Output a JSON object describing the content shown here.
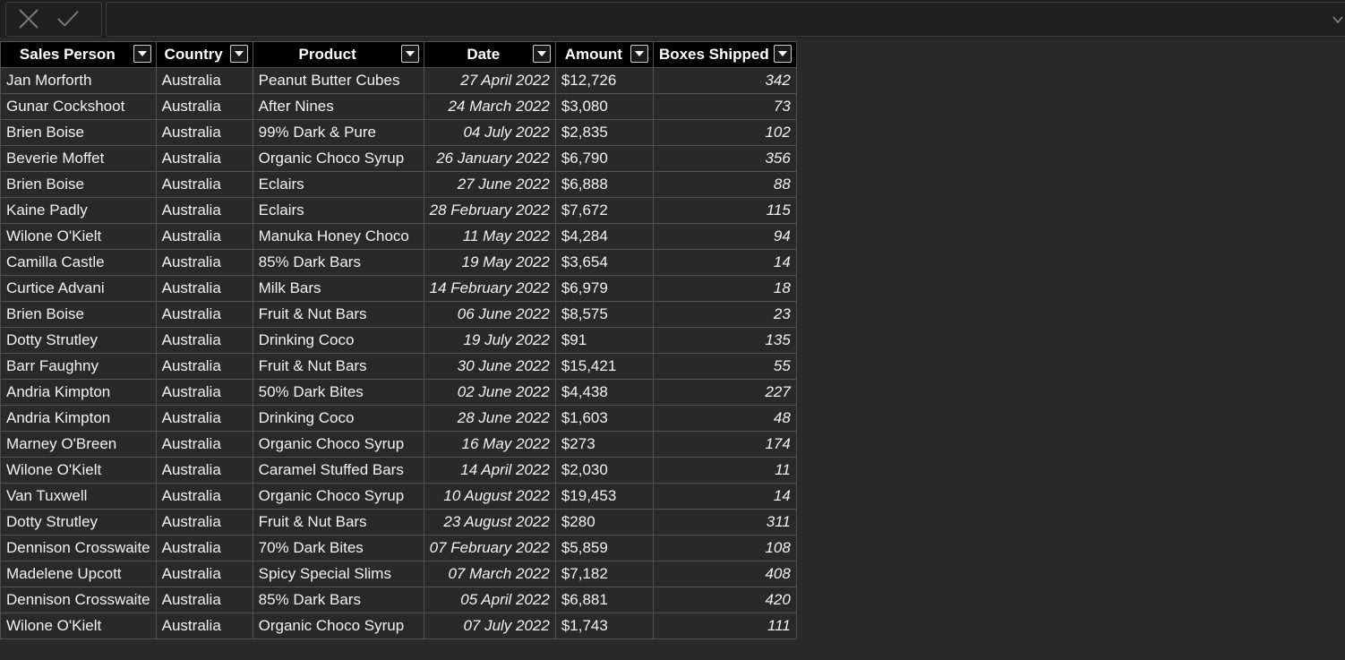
{
  "formula_bar": {
    "cancel_icon": "close-icon",
    "enter_icon": "checkmark-icon",
    "value": "",
    "expand_icon": "chevron-down-icon"
  },
  "table": {
    "columns": [
      {
        "label": "Sales Person",
        "filter_icon": "filter-dropdown-icon"
      },
      {
        "label": "Country",
        "filter_icon": "filter-dropdown-icon"
      },
      {
        "label": "Product",
        "filter_icon": "filter-dropdown-icon"
      },
      {
        "label": "Date",
        "filter_icon": "filter-dropdown-icon"
      },
      {
        "label": "Amount",
        "filter_icon": "filter-dropdown-icon"
      },
      {
        "label": "Boxes Shipped",
        "filter_icon": "filter-dropdown-icon"
      }
    ],
    "rows": [
      [
        "Jan Morforth",
        "Australia",
        "Peanut Butter Cubes",
        "27 April 2022",
        "$12,726",
        "342"
      ],
      [
        "Gunar Cockshoot",
        "Australia",
        "After Nines",
        "24 March 2022",
        "$3,080",
        "73"
      ],
      [
        "Brien Boise",
        "Australia",
        "99% Dark & Pure",
        "04 July 2022",
        "$2,835",
        "102"
      ],
      [
        "Beverie Moffet",
        "Australia",
        "Organic Choco Syrup",
        "26 January 2022",
        "$6,790",
        "356"
      ],
      [
        "Brien Boise",
        "Australia",
        "Eclairs",
        "27 June 2022",
        "$6,888",
        "88"
      ],
      [
        "Kaine Padly",
        "Australia",
        "Eclairs",
        "28 February 2022",
        "$7,672",
        "115"
      ],
      [
        "Wilone O'Kielt",
        "Australia",
        "Manuka Honey Choco",
        "11 May 2022",
        "$4,284",
        "94"
      ],
      [
        "Camilla Castle",
        "Australia",
        "85% Dark Bars",
        "19 May 2022",
        "$3,654",
        "14"
      ],
      [
        "Curtice Advani",
        "Australia",
        "Milk Bars",
        "14 February 2022",
        "$6,979",
        "18"
      ],
      [
        "Brien Boise",
        "Australia",
        "Fruit & Nut Bars",
        "06 June 2022",
        "$8,575",
        "23"
      ],
      [
        "Dotty Strutley",
        "Australia",
        "Drinking Coco",
        "19 July 2022",
        "$91",
        "135"
      ],
      [
        "Barr Faughny",
        "Australia",
        "Fruit & Nut Bars",
        "30 June 2022",
        "$15,421",
        "55"
      ],
      [
        "Andria Kimpton",
        "Australia",
        "50% Dark Bites",
        "02 June 2022",
        "$4,438",
        "227"
      ],
      [
        "Andria Kimpton",
        "Australia",
        "Drinking Coco",
        "28 June 2022",
        "$1,603",
        "48"
      ],
      [
        "Marney O'Breen",
        "Australia",
        "Organic Choco Syrup",
        "16 May 2022",
        "$273",
        "174"
      ],
      [
        "Wilone O'Kielt",
        "Australia",
        "Caramel Stuffed Bars",
        "14 April 2022",
        "$2,030",
        "11"
      ],
      [
        "Van Tuxwell",
        "Australia",
        "Organic Choco Syrup",
        "10 August 2022",
        "$19,453",
        "14"
      ],
      [
        "Dotty Strutley",
        "Australia",
        "Fruit & Nut Bars",
        "23 August 2022",
        "$280",
        "311"
      ],
      [
        "Dennison Crosswaite",
        "Australia",
        "70% Dark Bites",
        "07 February 2022",
        "$5,859",
        "108"
      ],
      [
        "Madelene Upcott",
        "Australia",
        "Spicy Special Slims",
        "07 March 2022",
        "$7,182",
        "408"
      ],
      [
        "Dennison Crosswaite",
        "Australia",
        "85% Dark Bars",
        "05 April 2022",
        "$6,881",
        "420"
      ],
      [
        "Wilone O'Kielt",
        "Australia",
        "Organic Choco Syrup",
        "07 July 2022",
        "$1,743",
        "111"
      ]
    ]
  }
}
